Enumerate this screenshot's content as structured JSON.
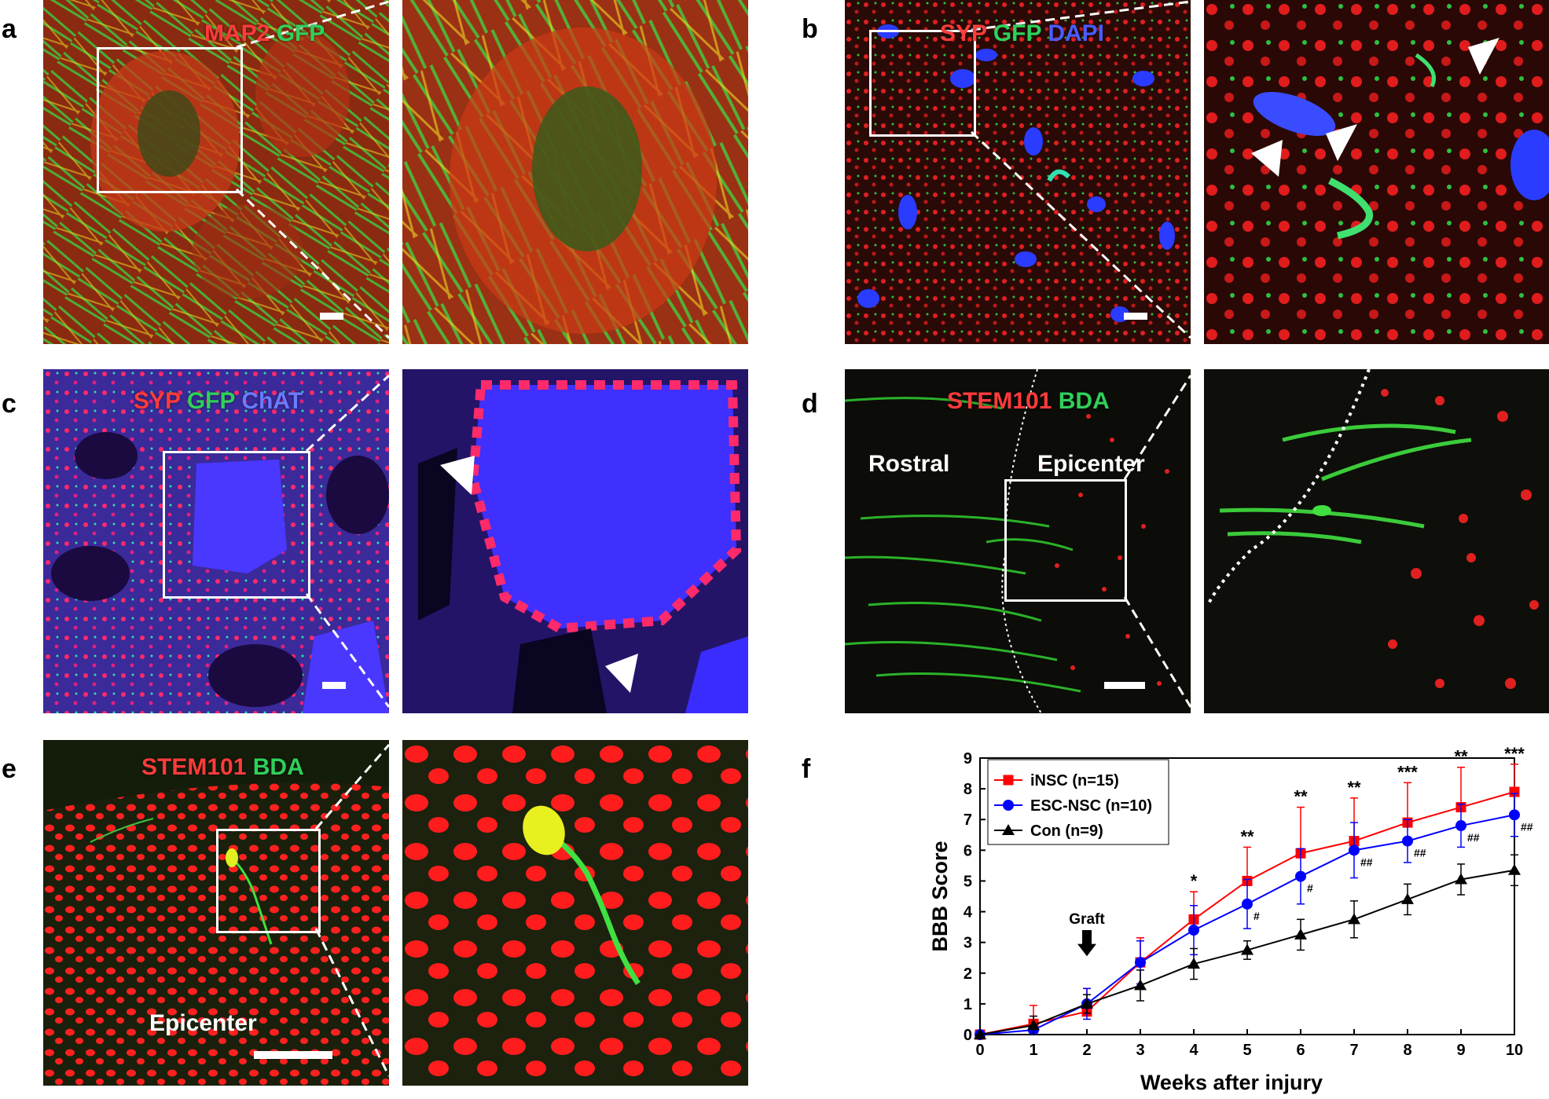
{
  "panels": {
    "a": {
      "label": "a",
      "stains": [
        "MAP2",
        "GFP"
      ],
      "stain_colors": [
        "#ff3b3b",
        "#2fd05a"
      ]
    },
    "b": {
      "label": "b",
      "stains": [
        "SYP",
        "GFP",
        "DAPI"
      ],
      "stain_colors": [
        "#ff3b3b",
        "#2fd05a",
        "#3b4bff"
      ]
    },
    "c": {
      "label": "c",
      "stains": [
        "SYP",
        "GFP",
        "ChAT"
      ],
      "stain_colors": [
        "#ff3b3b",
        "#2fd05a",
        "#3b4bff"
      ]
    },
    "d": {
      "label": "d",
      "stains": [
        "STEM101",
        "BDA"
      ],
      "stain_colors": [
        "#ff3b3b",
        "#2fd05a"
      ],
      "region_left": "Rostral",
      "region_right": "Epicenter"
    },
    "e": {
      "label": "e",
      "stains": [
        "STEM101",
        "BDA"
      ],
      "stain_colors": [
        "#ff3b3b",
        "#2fd05a"
      ],
      "region": "Epicenter"
    },
    "f": {
      "label": "f"
    }
  },
  "chart_data": {
    "type": "line",
    "xlabel": "Weeks after injury",
    "ylabel": "BBB Score",
    "xlim": [
      0,
      10
    ],
    "ylim": [
      0,
      9
    ],
    "x": [
      0,
      1,
      2,
      3,
      4,
      5,
      6,
      7,
      8,
      9,
      10
    ],
    "series": [
      {
        "name": "iNSC (n=15)",
        "color": "#ff0000",
        "marker": "square",
        "values": [
          0,
          0.35,
          0.75,
          2.35,
          3.75,
          5.0,
          5.9,
          6.3,
          6.9,
          7.4,
          7.9
        ],
        "errors": [
          0,
          0.6,
          0.75,
          0.8,
          0.9,
          1.1,
          1.5,
          1.4,
          1.3,
          1.3,
          0.9
        ]
      },
      {
        "name": "ESC-NSC (n=10)",
        "color": "#0000ff",
        "marker": "circle",
        "values": [
          0,
          0.15,
          1.0,
          2.35,
          3.4,
          4.25,
          5.15,
          6.0,
          6.3,
          6.8,
          7.15
        ],
        "errors": [
          0,
          0.15,
          0.5,
          0.7,
          0.8,
          0.8,
          0.9,
          0.9,
          0.7,
          0.7,
          0.7
        ]
      },
      {
        "name": "Con (n=9)",
        "color": "#000000",
        "marker": "triangle",
        "values": [
          0,
          0.3,
          1.0,
          1.6,
          2.3,
          2.75,
          3.25,
          3.75,
          4.4,
          5.05,
          5.35
        ],
        "errors": [
          0,
          0.3,
          0.3,
          0.5,
          0.5,
          0.3,
          0.5,
          0.6,
          0.5,
          0.5,
          0.5
        ]
      }
    ],
    "sig_stars": [
      {
        "x": 4,
        "text": "*"
      },
      {
        "x": 5,
        "text": "**"
      },
      {
        "x": 6,
        "text": "**"
      },
      {
        "x": 7,
        "text": "**"
      },
      {
        "x": 8,
        "text": "***"
      },
      {
        "x": 9,
        "text": "**"
      },
      {
        "x": 10,
        "text": "***"
      }
    ],
    "sig_hash": [
      {
        "x": 5,
        "text": "#"
      },
      {
        "x": 6,
        "text": "#"
      },
      {
        "x": 7,
        "text": "##"
      },
      {
        "x": 8,
        "text": "##"
      },
      {
        "x": 9,
        "text": "##"
      },
      {
        "x": 10,
        "text": "##"
      }
    ],
    "annotation": {
      "text": "Graft",
      "x": 2
    },
    "xticks": [
      "0",
      "1",
      "2",
      "3",
      "4",
      "5",
      "6",
      "7",
      "8",
      "9",
      "10"
    ],
    "yticks": [
      "0",
      "1",
      "2",
      "3",
      "4",
      "5",
      "6",
      "7",
      "8",
      "9"
    ],
    "legend_position": "top-left"
  }
}
